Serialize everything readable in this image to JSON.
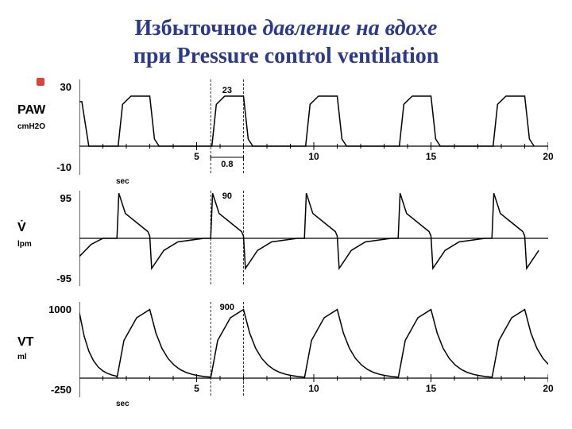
{
  "title": {
    "line1_a": "Избыточное",
    "line1_b": "давление на вдохе",
    "line2": "при Pressure control ventilation",
    "color": "#2a3a8f",
    "fontsize": 28
  },
  "time_axis": {
    "label": "sec",
    "min": 0,
    "max": 20,
    "ticks": [
      5,
      10,
      15,
      20
    ]
  },
  "cycle": {
    "period": 4.0,
    "rise": 0.6,
    "plateau": 0.8,
    "fall": 0.4,
    "first_peak_start": 1.6
  },
  "charts": [
    {
      "name": "paw",
      "label": "PAW",
      "units": "cmH2O",
      "ymin": -10,
      "ymax": 30,
      "yticks": [
        -10,
        30
      ],
      "baseline": 2,
      "peak": 23,
      "annot_peak": "23",
      "type": "square-plateau",
      "show_time_axis": true,
      "show_width_marker": true,
      "width_marker_label": "0.8"
    },
    {
      "name": "flow",
      "label": "V̇",
      "units": "lpm",
      "ymin": -95,
      "ymax": 95,
      "yticks": [
        -95,
        95
      ],
      "baseline": 0,
      "peak": 90,
      "neg_peak": -60,
      "annot_peak": "90",
      "type": "biphasic-flow",
      "show_time_axis": false
    },
    {
      "name": "vt",
      "label": "VT",
      "units": "ml",
      "ymin": -250,
      "ymax": 1000,
      "yticks": [
        -250,
        1000
      ],
      "baseline": 0,
      "peak": 900,
      "annot_peak": "900",
      "type": "volume-triangle",
      "show_time_axis": true
    }
  ],
  "colors": {
    "bg": "#ffffff",
    "ink": "#000000",
    "accent_dot": "#d9453b"
  }
}
